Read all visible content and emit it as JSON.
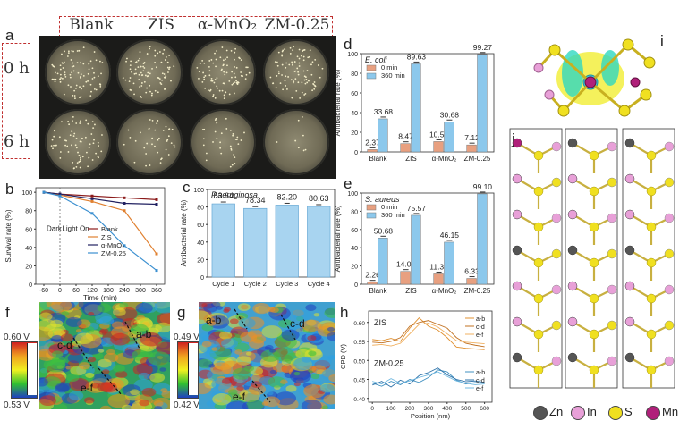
{
  "panels": {
    "a": "a",
    "b": "b",
    "c": "c",
    "d": "d",
    "e": "e",
    "f": "f",
    "g": "g",
    "h": "h",
    "i": "i",
    "j": "j"
  },
  "panel_a": {
    "columns": [
      "Blank",
      "ZIS",
      "α-MnO₂",
      "ZM-0.25"
    ],
    "rows": [
      "0 h",
      "6 h"
    ]
  },
  "panel_f": {
    "scale_top": "0.60 V",
    "scale_bottom": "0.53 V",
    "labels": [
      "a-b",
      "c-d",
      "e-f"
    ]
  },
  "panel_g": {
    "scale_top": "0.49 V",
    "scale_bottom": "0.42 V",
    "labels": [
      "a-b",
      "c-d",
      "e-f"
    ]
  },
  "panel_j": {
    "legend": [
      {
        "name": "Zn",
        "color": "#555555"
      },
      {
        "name": "In",
        "color": "#e8a0d8"
      },
      {
        "name": "S",
        "color": "#f0e020"
      },
      {
        "name": "Mn",
        "color": "#b0207a"
      }
    ]
  },
  "chart_data": [
    {
      "id": "b",
      "type": "line",
      "xlabel": "Time (min)",
      "ylabel": "Survival rate (%)",
      "xticks": [
        -60,
        0,
        60,
        120,
        180,
        240,
        300,
        360
      ],
      "yticks": [
        0,
        20,
        40,
        60,
        80,
        100
      ],
      "xlim": [
        -90,
        390
      ],
      "ylim": [
        0,
        105
      ],
      "annotations": [
        "Dark",
        "Light On"
      ],
      "series": [
        {
          "name": "Blank",
          "color": "#8b1a1a",
          "x": [
            -60,
            0,
            120,
            240,
            360
          ],
          "y": [
            100,
            98,
            96,
            94,
            92
          ]
        },
        {
          "name": "ZIS",
          "color": "#e08030",
          "x": [
            -60,
            0,
            120,
            240,
            360
          ],
          "y": [
            100,
            97,
            90,
            80,
            33
          ]
        },
        {
          "name": "α-MnO₂",
          "color": "#202060",
          "x": [
            -60,
            0,
            120,
            240,
            360
          ],
          "y": [
            100,
            98,
            93,
            88,
            87
          ]
        },
        {
          "name": "ZM-0.25",
          "color": "#3a8fd0",
          "x": [
            -60,
            0,
            120,
            240,
            360
          ],
          "y": [
            100,
            96,
            77,
            42,
            15
          ]
        }
      ]
    },
    {
      "id": "c",
      "type": "bar",
      "title": "P.aeruginosa",
      "ylabel": "Antibacterial rate (%)",
      "categories": [
        "Cycle 1",
        "Cycle 2",
        "Cycle 3",
        "Cycle 4"
      ],
      "values": [
        83.64,
        78.34,
        82.2,
        80.63
      ],
      "value_labels": [
        "83.64",
        "78.34",
        "82.20",
        "80.63"
      ],
      "yticks": [
        0,
        20,
        40,
        60,
        80,
        100
      ],
      "ylim": [
        0,
        100
      ]
    },
    {
      "id": "d",
      "type": "bar",
      "title": "E. coli",
      "ylabel": "Antibacterial rate (%)",
      "categories": [
        "Blank",
        "ZIS",
        "α-MnO₂",
        "ZM-0.25"
      ],
      "series": [
        {
          "name": "0 min",
          "color": "#e8a080",
          "values": [
            2.37,
            8.47,
            10.51,
            7.12
          ],
          "labels": [
            "2.37",
            "8.47",
            "10.51",
            "7.12"
          ]
        },
        {
          "name": "360 min",
          "color": "#8cc8ec",
          "values": [
            33.68,
            89.63,
            30.68,
            99.27
          ],
          "labels": [
            "33.68",
            "89.63",
            "30.68",
            "99.27"
          ]
        }
      ],
      "yticks": [
        0,
        20,
        40,
        60,
        80,
        100
      ],
      "ylim": [
        0,
        100
      ]
    },
    {
      "id": "e",
      "type": "bar",
      "title": "S. aureus",
      "ylabel": "Antibacterial rate (%)",
      "categories": [
        "Blank",
        "ZIS",
        "α-MnO₂",
        "ZM-0.25"
      ],
      "series": [
        {
          "name": "0 min",
          "color": "#e8a080",
          "values": [
            2.26,
            14.03,
            11.31,
            6.33
          ],
          "labels": [
            "2.26",
            "14.03",
            "11.31",
            "6.33"
          ]
        },
        {
          "name": "360 min",
          "color": "#8cc8ec",
          "values": [
            50.68,
            75.57,
            46.15,
            99.1
          ],
          "labels": [
            "50.68",
            "75.57",
            "46.15",
            "99.10"
          ]
        }
      ],
      "yticks": [
        0,
        20,
        40,
        60,
        80,
        100
      ],
      "ylim": [
        0,
        100
      ]
    },
    {
      "id": "h",
      "type": "line",
      "xlabel": "Position (nm)",
      "ylabel": "CPD (V)",
      "xticks": [
        0,
        100,
        200,
        300,
        400,
        500,
        600
      ],
      "yticks": [
        0.4,
        0.45,
        0.5,
        0.55,
        0.6
      ],
      "ytick_labels": [
        "0.40",
        "0.45",
        "0.50",
        "0.55",
        "0.60"
      ],
      "xlim": [
        -20,
        640
      ],
      "ylim": [
        0.39,
        0.63
      ],
      "annotations": [
        "ZIS",
        "ZM-0.25"
      ],
      "series": [
        {
          "name": "a-b",
          "group": "ZIS",
          "color": "#e09030",
          "x": [
            0,
            50,
            100,
            150,
            200,
            250,
            300,
            350,
            400,
            450,
            500,
            550,
            600
          ],
          "y": [
            0.555,
            0.552,
            0.558,
            0.55,
            0.585,
            0.612,
            0.59,
            0.58,
            0.56,
            0.535,
            0.532,
            0.53,
            0.528
          ]
        },
        {
          "name": "c-d",
          "group": "ZIS",
          "color": "#c07020",
          "x": [
            0,
            50,
            100,
            150,
            200,
            250,
            300,
            350,
            400,
            450,
            500,
            550,
            600
          ],
          "y": [
            0.548,
            0.546,
            0.55,
            0.56,
            0.59,
            0.6,
            0.605,
            0.595,
            0.585,
            0.56,
            0.545,
            0.54,
            0.536
          ]
        },
        {
          "name": "e-f",
          "group": "ZIS",
          "color": "#f0b060",
          "x": [
            0,
            50,
            100,
            150,
            200,
            250,
            300,
            350,
            400,
            450,
            500,
            550,
            600
          ],
          "y": [
            0.54,
            0.542,
            0.538,
            0.545,
            0.57,
            0.595,
            0.598,
            0.588,
            0.57,
            0.552,
            0.548,
            0.546,
            0.544
          ]
        },
        {
          "name": "a-b",
          "group": "ZM-0.25",
          "color": "#4090c0",
          "x": [
            0,
            50,
            100,
            150,
            200,
            250,
            300,
            350,
            400,
            450,
            500,
            550,
            600
          ],
          "y": [
            0.44,
            0.432,
            0.445,
            0.436,
            0.45,
            0.442,
            0.455,
            0.475,
            0.47,
            0.448,
            0.438,
            0.442,
            0.44
          ]
        },
        {
          "name": "c-d",
          "group": "ZM-0.25",
          "color": "#2a70a8",
          "x": [
            0,
            50,
            100,
            150,
            200,
            250,
            300,
            350,
            400,
            450,
            500,
            550,
            600
          ],
          "y": [
            0.435,
            0.445,
            0.43,
            0.448,
            0.438,
            0.46,
            0.468,
            0.48,
            0.462,
            0.45,
            0.444,
            0.446,
            0.442
          ]
        },
        {
          "name": "e-f",
          "group": "ZM-0.25",
          "color": "#70b8e0",
          "x": [
            0,
            50,
            100,
            150,
            200,
            250,
            300,
            350,
            400,
            450,
            500,
            550,
            600
          ],
          "y": [
            0.445,
            0.438,
            0.452,
            0.44,
            0.446,
            0.455,
            0.462,
            0.47,
            0.458,
            0.446,
            0.44,
            0.436,
            0.438
          ]
        }
      ]
    }
  ]
}
